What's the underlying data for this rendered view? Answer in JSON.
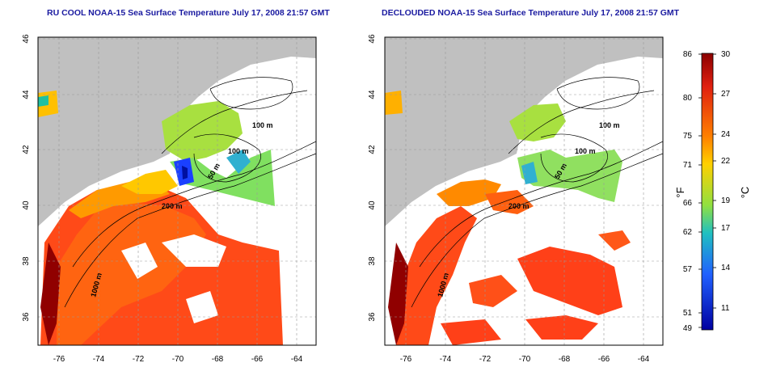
{
  "panels": [
    {
      "title": "RU COOL NOAA-15 Sea Surface Temperature July 17, 2008 21:57 GMT"
    },
    {
      "title": "DECLOUDED NOAA-15 Sea Surface Temperature July 17, 2008 21:57 GMT"
    }
  ],
  "lon_ticks": [
    "-76",
    "-74",
    "-72",
    "-70",
    "-68",
    "-66",
    "-64"
  ],
  "lat_ticks": [
    "36",
    "38",
    "40",
    "42",
    "44",
    "46"
  ],
  "contour_labels": [
    "100 m",
    "100 m",
    "50 m",
    "200 m",
    "1000 m"
  ],
  "colorbar": {
    "f_label": "°F",
    "c_label": "°C",
    "fahrenheit": [
      "86",
      "80",
      "75",
      "71",
      "66",
      "62",
      "57",
      "51",
      "49"
    ],
    "celsius": [
      "30",
      "27",
      "24",
      "22",
      "19",
      "17",
      "14",
      "11"
    ],
    "colors": [
      "#8b0000",
      "#e02010",
      "#ff7f00",
      "#ffd000",
      "#90e040",
      "#20c0c0",
      "#2060ff",
      "#0000a0"
    ]
  },
  "colors": {
    "land": "#c0c0c0",
    "water_missing": "#ffffff",
    "title": "#1a1aa0"
  }
}
